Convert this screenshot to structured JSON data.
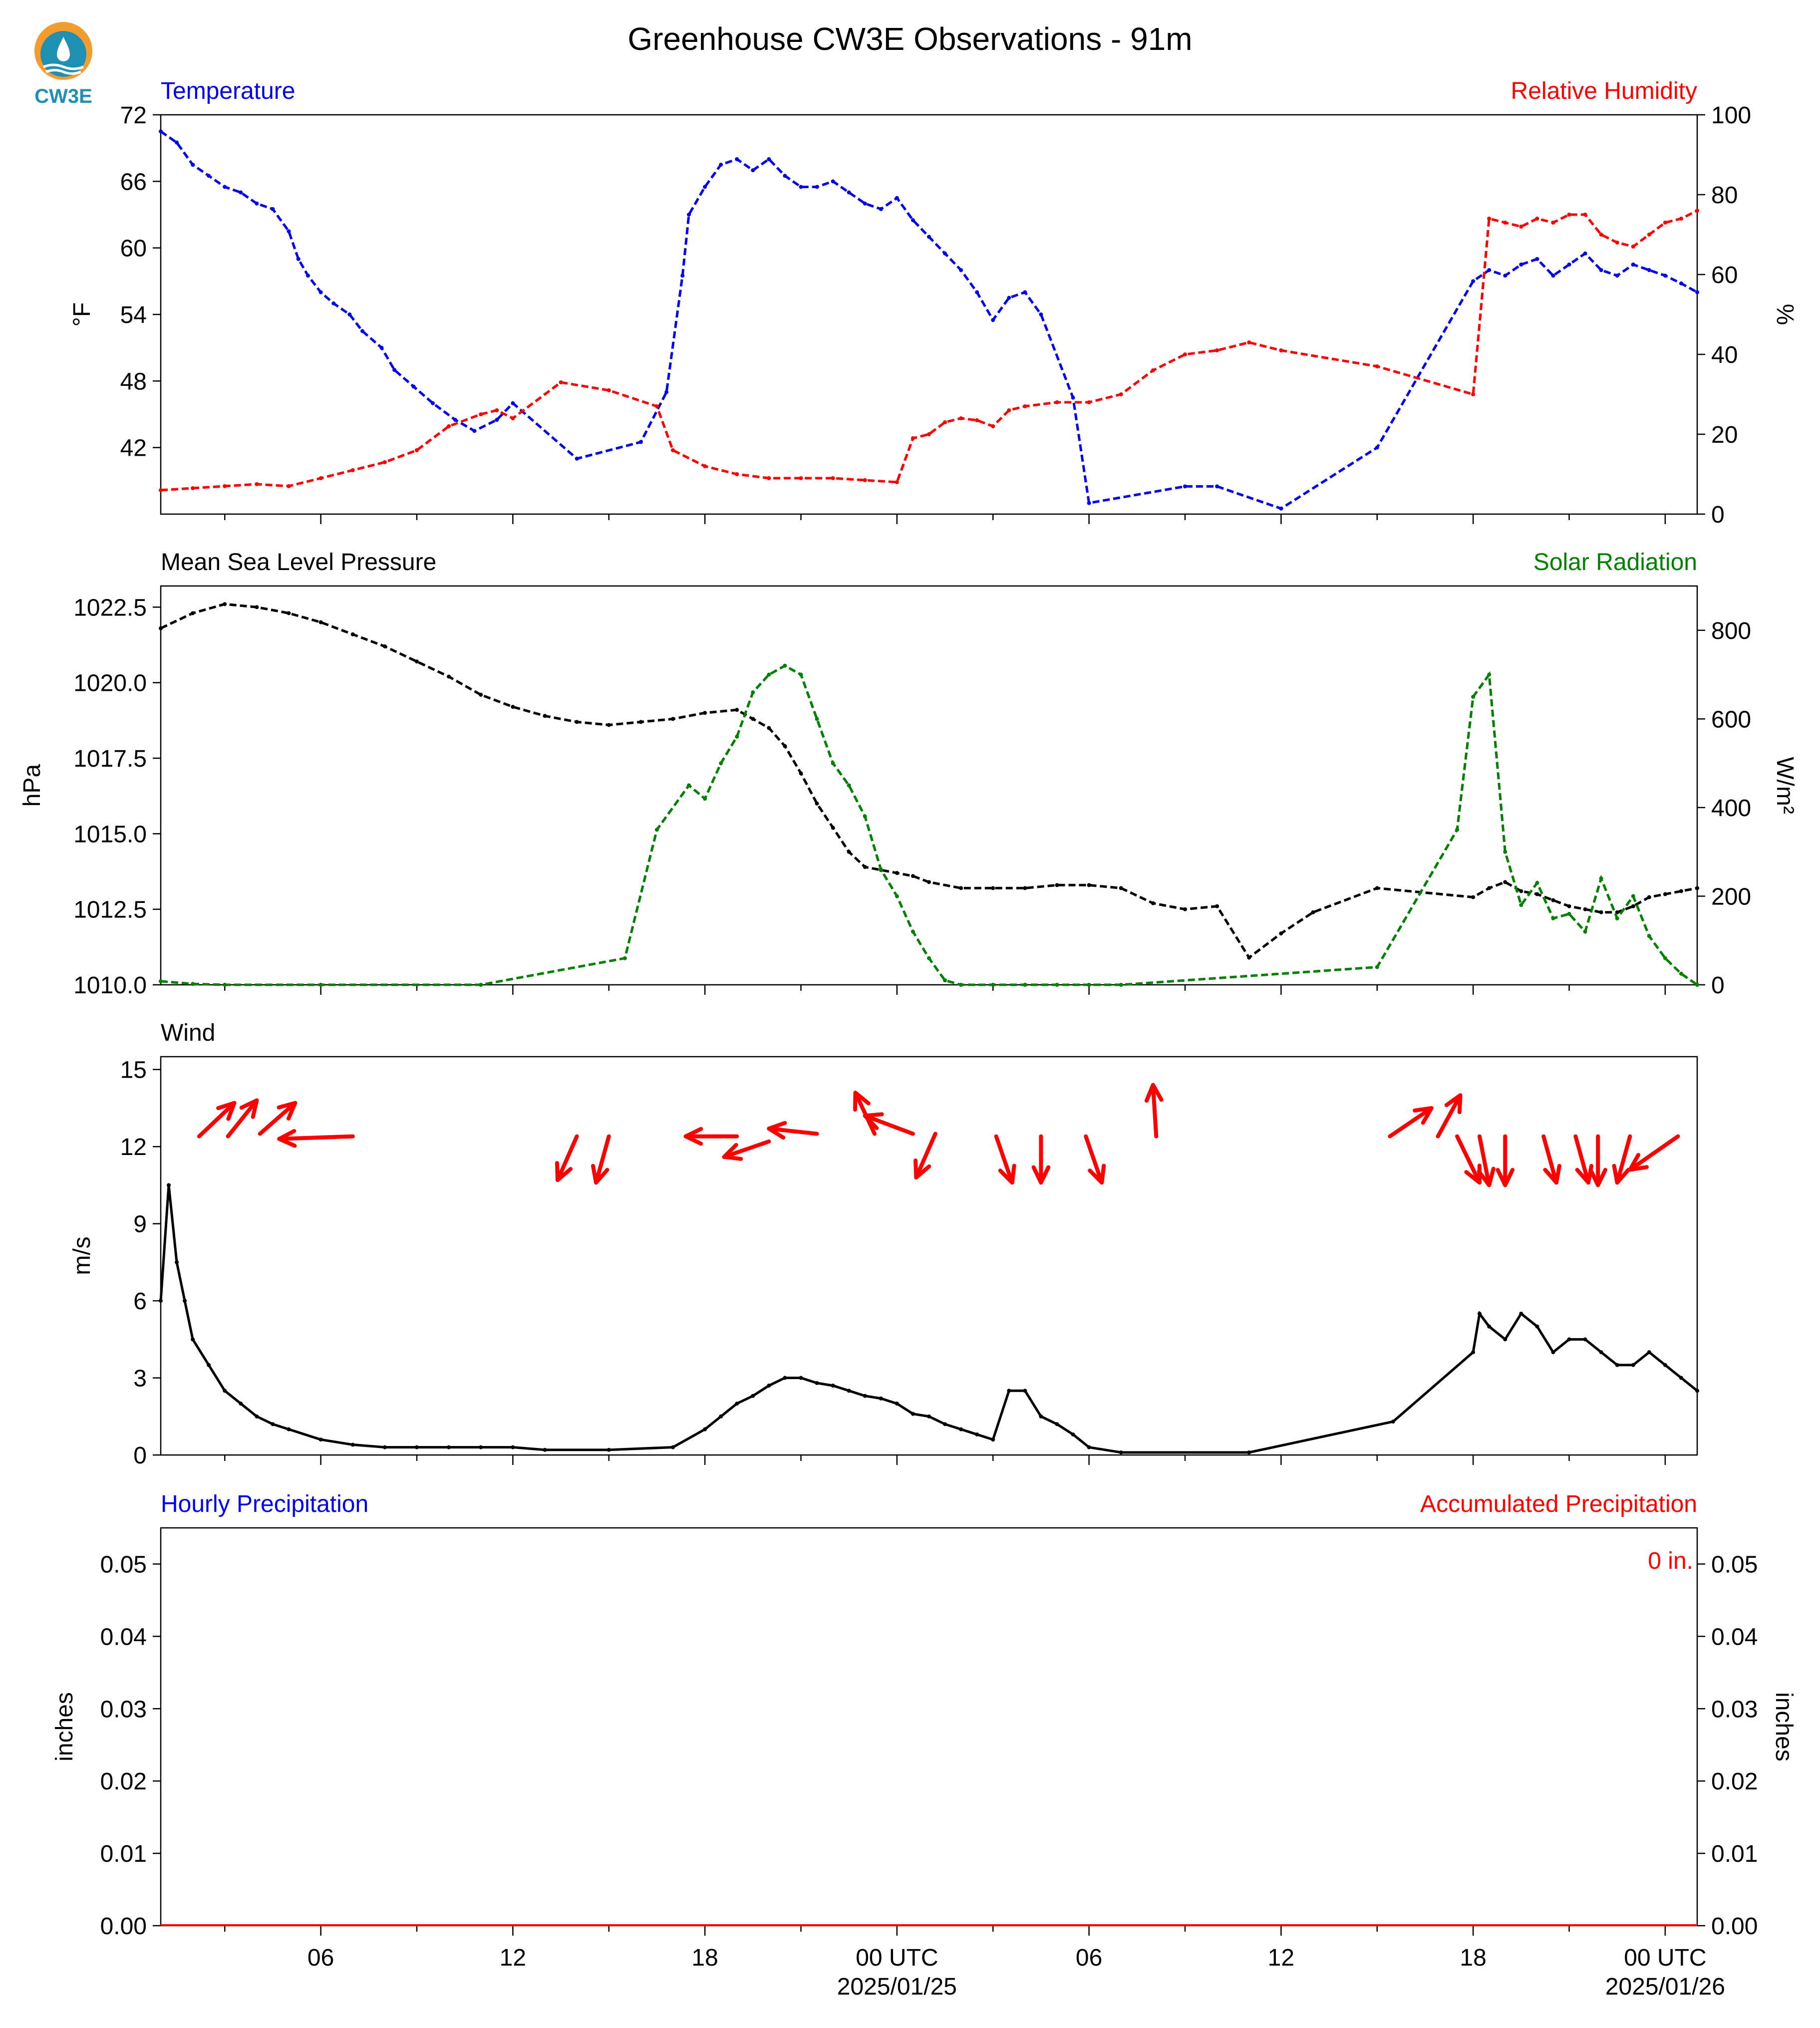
{
  "figure": {
    "title": "Greenhouse CW3E Observations - 91m",
    "logo_text": "CW3E",
    "colors": {
      "blue": "#0000ee",
      "red": "#ff0000",
      "green": "#008000",
      "black": "#000000",
      "logo_orange": "#f39c2f",
      "logo_teal": "#1f8fb2"
    }
  },
  "chart_data": [
    {
      "type": "line",
      "panel": "temperature-humidity",
      "left_title": "Temperature",
      "right_title": "Relative Humidity",
      "ylabel_left": "°F",
      "ylabel_right": "%",
      "ylim_left": [
        36,
        72
      ],
      "ylim_right": [
        0,
        100
      ],
      "yticks_left": [
        "42",
        "48",
        "54",
        "60",
        "66",
        "72"
      ],
      "yticks_right": [
        "0",
        "20",
        "40",
        "60",
        "80",
        "100"
      ],
      "xlim_hours": [
        0,
        48
      ],
      "series": [
        {
          "name": "Temperature",
          "axis": "left",
          "color": "#0000ee",
          "x": [
            0,
            0.5,
            1,
            1.5,
            2,
            2.5,
            3,
            3.5,
            4,
            4.3,
            4.6,
            5,
            5.4,
            5.9,
            6.3,
            6.9,
            7.3,
            7.9,
            8.5,
            9.2,
            9.8,
            10.5,
            11,
            13,
            15,
            15.8,
            16.3,
            16.5,
            17,
            17.5,
            18,
            18.5,
            19,
            19.5,
            20,
            20.5,
            21,
            21.5,
            22,
            22.5,
            23,
            23.5,
            24,
            24.5,
            25,
            25.5,
            26,
            26.5,
            27,
            27.5,
            28.5,
            29,
            32,
            33,
            35,
            38,
            41,
            41.5,
            42,
            42.5,
            43,
            43.5,
            44,
            44.5,
            45,
            45.5,
            46,
            46.5,
            47,
            47.5,
            48
          ],
          "y": [
            70.5,
            69.5,
            67.5,
            66.5,
            65.5,
            65,
            64,
            63.5,
            61.5,
            59,
            57.5,
            56,
            55,
            54,
            52.5,
            51,
            49,
            47.5,
            46,
            44.5,
            43.5,
            44.5,
            46,
            41,
            42.5,
            47,
            57.5,
            63,
            65.5,
            67.5,
            68,
            67,
            68,
            66.5,
            65.5,
            65.5,
            66,
            65,
            64,
            63.5,
            64.5,
            62.5,
            61,
            59.5,
            58,
            56,
            53.5,
            55.5,
            56,
            54,
            46.5,
            37,
            38.5,
            38.5,
            36.5,
            42,
            57,
            58,
            57.5,
            58.5,
            59,
            57.5,
            58.5,
            59.5,
            58,
            57.5,
            58.5,
            58,
            57.5,
            56.8,
            56
          ]
        },
        {
          "name": "Relative Humidity",
          "axis": "right",
          "color": "#ff0000",
          "x": [
            0,
            1,
            2,
            3,
            4,
            5,
            6,
            7,
            8,
            9,
            10,
            10.5,
            11,
            12.5,
            14,
            15.5,
            16,
            17,
            18,
            19,
            20,
            21,
            22,
            23,
            23.5,
            24,
            24.5,
            25,
            25.5,
            26,
            26.5,
            27,
            28,
            29,
            30,
            31,
            32,
            33,
            34,
            35,
            38,
            41,
            41.5,
            42,
            42.5,
            43,
            43.5,
            44,
            44.5,
            45,
            45.5,
            46,
            46.5,
            47,
            47.5,
            48
          ],
          "y": [
            6,
            6.5,
            7,
            7.5,
            7,
            9,
            11,
            13,
            16,
            22,
            25,
            26,
            24,
            33,
            31,
            27,
            16,
            12,
            10,
            9,
            9,
            9,
            8.5,
            8,
            19,
            20,
            23,
            24,
            23.5,
            22,
            26,
            27,
            28,
            28,
            30,
            36,
            40,
            41,
            43,
            41,
            37,
            30,
            74,
            73,
            72,
            74,
            73,
            75,
            75,
            70,
            68,
            67,
            70,
            73,
            74,
            76
          ]
        }
      ]
    },
    {
      "type": "line",
      "panel": "pressure-solar",
      "left_title": "Mean Sea Level Pressure",
      "right_title": "Solar Radiation",
      "ylabel_left": "hPa",
      "ylabel_right": "W/m²",
      "ylim_left": [
        1010,
        1023.2
      ],
      "ylim_right": [
        0,
        900
      ],
      "yticks_left": [
        "1010.0",
        "1012.5",
        "1015.0",
        "1017.5",
        "1020.0",
        "1022.5"
      ],
      "yticks_right": [
        "0",
        "200",
        "400",
        "600",
        "800"
      ],
      "xlim_hours": [
        0,
        48
      ],
      "series": [
        {
          "name": "Mean Sea Level Pressure",
          "axis": "left",
          "color": "#000000",
          "x": [
            0,
            1,
            2,
            3,
            4,
            5,
            6,
            7,
            8,
            9,
            10,
            11,
            12,
            13,
            14,
            15,
            16,
            17,
            18,
            18.5,
            19,
            19.5,
            20,
            20.5,
            21,
            21.5,
            22,
            22.5,
            23,
            23.5,
            24,
            25,
            26,
            27,
            28,
            29,
            30,
            31,
            32,
            33,
            34,
            35,
            36,
            38,
            41,
            41.5,
            42,
            42.5,
            43,
            43.5,
            44,
            44.5,
            45,
            45.5,
            46,
            46.5,
            47,
            47.5,
            48
          ],
          "y": [
            1021.8,
            1022.3,
            1022.6,
            1022.5,
            1022.3,
            1022.0,
            1021.6,
            1021.2,
            1020.7,
            1020.2,
            1019.6,
            1019.2,
            1018.9,
            1018.7,
            1018.6,
            1018.7,
            1018.8,
            1019.0,
            1019.1,
            1018.8,
            1018.5,
            1017.9,
            1017.0,
            1016.0,
            1015.2,
            1014.4,
            1013.9,
            1013.8,
            1013.7,
            1013.6,
            1013.4,
            1013.2,
            1013.2,
            1013.2,
            1013.3,
            1013.3,
            1013.2,
            1012.7,
            1012.5,
            1012.6,
            1010.9,
            1011.7,
            1012.4,
            1013.2,
            1012.9,
            1013.2,
            1013.4,
            1013.1,
            1013.0,
            1012.8,
            1012.6,
            1012.5,
            1012.4,
            1012.4,
            1012.6,
            1012.9,
            1013.0,
            1013.1,
            1013.2
          ]
        },
        {
          "name": "Solar Radiation",
          "axis": "right",
          "color": "#008000",
          "x": [
            0,
            1,
            2,
            5,
            10,
            14.5,
            15.5,
            16.5,
            17,
            17.5,
            18,
            18.5,
            19,
            19.5,
            20,
            20.5,
            21,
            21.5,
            22,
            22.5,
            23,
            23.5,
            24,
            24.5,
            25,
            26,
            27,
            28,
            29,
            30,
            38,
            40.5,
            41,
            41.5,
            42,
            42.5,
            43,
            43.5,
            44,
            44.5,
            45,
            45.5,
            46,
            46.5,
            47,
            47.5,
            48
          ],
          "y": [
            8,
            2,
            0,
            0,
            0,
            60,
            350,
            450,
            420,
            500,
            560,
            660,
            700,
            720,
            700,
            600,
            500,
            450,
            380,
            260,
            200,
            120,
            60,
            10,
            0,
            0,
            0,
            0,
            0,
            0,
            40,
            350,
            650,
            700,
            300,
            180,
            230,
            150,
            160,
            120,
            240,
            150,
            200,
            110,
            60,
            25,
            0
          ]
        }
      ]
    },
    {
      "type": "line",
      "panel": "wind",
      "left_title": "Wind",
      "ylabel_left": "m/s",
      "ylim_left": [
        0,
        15.5
      ],
      "yticks_left": [
        "0",
        "3",
        "6",
        "9",
        "12",
        "15"
      ],
      "xlim_hours": [
        0,
        48
      ],
      "series": [
        {
          "name": "Wind",
          "color": "#000000",
          "x": [
            0,
            0.25,
            0.5,
            0.75,
            1,
            1.5,
            2,
            2.5,
            3,
            3.5,
            4,
            5,
            6,
            7,
            8,
            9,
            10,
            11,
            12,
            14,
            16,
            17,
            17.5,
            18,
            18.5,
            19,
            19.5,
            20,
            20.5,
            21,
            21.5,
            22,
            22.5,
            23,
            23.5,
            24,
            24.5,
            25,
            25.5,
            26,
            26.5,
            27,
            27.5,
            28,
            28.5,
            29,
            30,
            34,
            38.5,
            41,
            41.2,
            41.5,
            42,
            42.5,
            43,
            43.5,
            44,
            44.5,
            45,
            45.5,
            46,
            46.5,
            47,
            47.5,
            48
          ],
          "y": [
            6,
            10.5,
            7.5,
            6,
            4.5,
            3.5,
            2.5,
            2,
            1.5,
            1.2,
            1,
            0.6,
            0.4,
            0.3,
            0.3,
            0.3,
            0.3,
            0.3,
            0.2,
            0.2,
            0.3,
            1,
            1.5,
            2,
            2.3,
            2.7,
            3,
            3,
            2.8,
            2.7,
            2.5,
            2.3,
            2.2,
            2,
            1.6,
            1.5,
            1.2,
            1,
            0.8,
            0.6,
            2.5,
            2.5,
            1.5,
            1.2,
            0.8,
            0.3,
            0.1,
            0.1,
            1.3,
            4,
            5.5,
            5,
            4.5,
            5.5,
            5,
            4,
            4.5,
            4.5,
            4,
            3.5,
            3.5,
            4,
            3.5,
            3,
            2.5
          ]
        }
      ],
      "arrows": {
        "units": "hours / m/s",
        "items": [
          {
            "hour": 1.2,
            "speed": 12.4,
            "dx": 1.1,
            "dy": 1.3
          },
          {
            "hour": 2.1,
            "speed": 12.4,
            "dx": 0.9,
            "dy": 1.4
          },
          {
            "hour": 3.1,
            "speed": 12.5,
            "dx": 1.1,
            "dy": 1.2
          },
          {
            "hour": 6.0,
            "speed": 12.4,
            "dx": -2.3,
            "dy": -0.1
          },
          {
            "hour": 13.0,
            "speed": 12.4,
            "dx": -0.6,
            "dy": -1.7
          },
          {
            "hour": 14.0,
            "speed": 12.4,
            "dx": -0.4,
            "dy": -1.8
          },
          {
            "hour": 18.0,
            "speed": 12.4,
            "dx": -1.6,
            "dy": 0
          },
          {
            "hour": 19.0,
            "speed": 12.2,
            "dx": -1.4,
            "dy": -0.6
          },
          {
            "hour": 20.5,
            "speed": 12.5,
            "dx": -1.5,
            "dy": 0.2
          },
          {
            "hour": 22.3,
            "speed": 12.5,
            "dx": -0.6,
            "dy": 1.6
          },
          {
            "hour": 23.5,
            "speed": 12.5,
            "dx": -1.5,
            "dy": 0.7
          },
          {
            "hour": 24.2,
            "speed": 12.5,
            "dx": -0.6,
            "dy": -1.7
          },
          {
            "hour": 26.1,
            "speed": 12.4,
            "dx": 0.5,
            "dy": -1.8
          },
          {
            "hour": 27.5,
            "speed": 12.4,
            "dx": 0,
            "dy": -1.8
          },
          {
            "hour": 28.9,
            "speed": 12.4,
            "dx": 0.5,
            "dy": -1.8
          },
          {
            "hour": 31.1,
            "speed": 12.4,
            "dx": -0.1,
            "dy": 2.0
          },
          {
            "hour": 38.4,
            "speed": 12.4,
            "dx": 1.3,
            "dy": 1.1
          },
          {
            "hour": 39.9,
            "speed": 12.4,
            "dx": 0.7,
            "dy": 1.6
          },
          {
            "hour": 40.5,
            "speed": 12.4,
            "dx": 0.7,
            "dy": -1.8
          },
          {
            "hour": 41.2,
            "speed": 12.4,
            "dx": 0.3,
            "dy": -1.9
          },
          {
            "hour": 42.0,
            "speed": 12.4,
            "dx": 0,
            "dy": -1.9
          },
          {
            "hour": 43.2,
            "speed": 12.4,
            "dx": 0.4,
            "dy": -1.8
          },
          {
            "hour": 44.2,
            "speed": 12.4,
            "dx": 0.4,
            "dy": -1.8
          },
          {
            "hour": 44.9,
            "speed": 12.4,
            "dx": 0,
            "dy": -1.9
          },
          {
            "hour": 45.9,
            "speed": 12.4,
            "dx": -0.4,
            "dy": -1.8
          },
          {
            "hour": 47.4,
            "speed": 12.4,
            "dx": -1.5,
            "dy": -1.3
          }
        ]
      }
    },
    {
      "type": "bar",
      "panel": "precipitation",
      "left_title": "Hourly Precipitation",
      "right_title": "Accumulated Precipitation",
      "ylabel_left": "inches",
      "ylabel_right": "inches",
      "ylim_left": [
        0,
        0.055
      ],
      "ylim_right": [
        0,
        0.055
      ],
      "yticks_left": [
        "0.00",
        "0.01",
        "0.02",
        "0.03",
        "0.04",
        "0.05"
      ],
      "yticks_right": [
        "0.00",
        "0.01",
        "0.02",
        "0.03",
        "0.04",
        "0.05"
      ],
      "accumulated_label": "0 in.",
      "xlim_hours": [
        0,
        48
      ],
      "series": [
        {
          "name": "Hourly Precipitation",
          "color": "#0000ee",
          "x": [
            0,
            48
          ],
          "y": [
            0,
            0
          ]
        },
        {
          "name": "Accumulated Precipitation",
          "color": "#ff0000",
          "x": [
            0,
            48
          ],
          "y": [
            0,
            0
          ]
        }
      ],
      "xticks": [
        {
          "hour": 5,
          "label": "06"
        },
        {
          "hour": 11,
          "label": "12"
        },
        {
          "hour": 17,
          "label": "18"
        },
        {
          "hour": 23,
          "label": "00 UTC",
          "sublabel": "2025/01/25"
        },
        {
          "hour": 29,
          "label": "06"
        },
        {
          "hour": 35,
          "label": "12"
        },
        {
          "hour": 41,
          "label": "18"
        },
        {
          "hour": 47,
          "label": "00 UTC",
          "sublabel": "2025/01/26"
        }
      ]
    }
  ]
}
